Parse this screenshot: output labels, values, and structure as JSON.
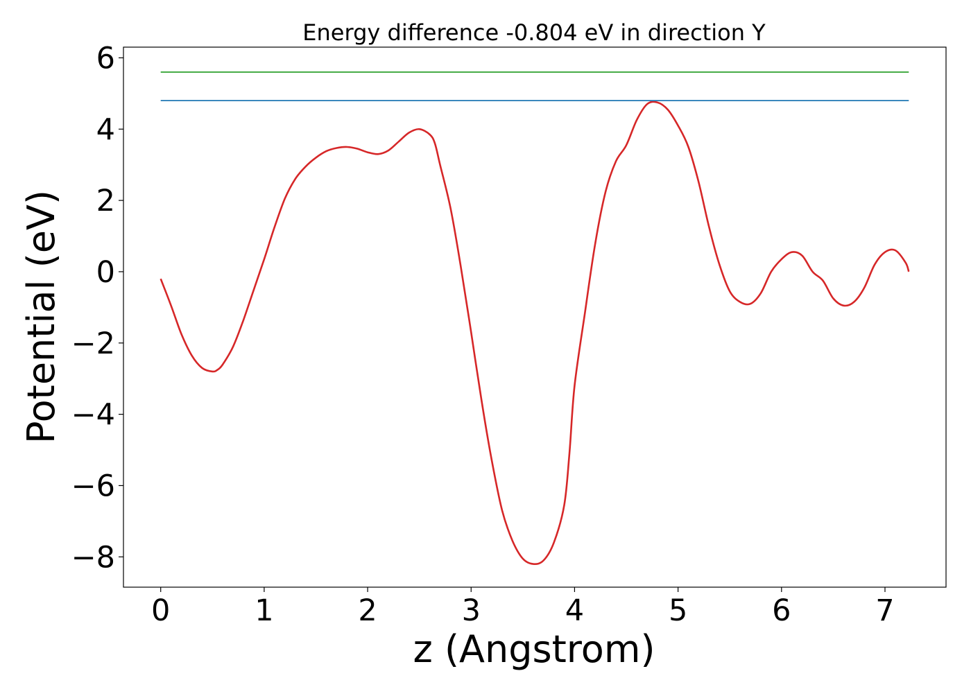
{
  "chart_data": {
    "type": "line",
    "title": "Energy difference -0.804 eV in direction Y",
    "xlabel": "z (Angstrom)",
    "ylabel": "Potential (eV)",
    "xlim": [
      -0.36,
      7.59
    ],
    "ylim": [
      -8.85,
      6.3
    ],
    "xticks": [
      0,
      1,
      2,
      3,
      4,
      5,
      6,
      7
    ],
    "yticks": [
      6,
      4,
      2,
      0,
      -2,
      -4,
      -6,
      -8
    ],
    "grid": false,
    "legend": "none",
    "series": [
      {
        "color": "#d62728",
        "x": [
          0.0,
          0.1,
          0.2,
          0.3,
          0.4,
          0.5,
          0.55,
          0.6,
          0.7,
          0.8,
          0.9,
          1.0,
          1.1,
          1.2,
          1.3,
          1.4,
          1.5,
          1.6,
          1.7,
          1.8,
          1.9,
          2.0,
          2.1,
          2.2,
          2.3,
          2.4,
          2.5,
          2.6,
          2.65,
          2.7,
          2.8,
          2.9,
          3.0,
          3.1,
          3.2,
          3.3,
          3.4,
          3.5,
          3.6,
          3.7,
          3.8,
          3.9,
          3.95,
          4.0,
          4.1,
          4.2,
          4.3,
          4.4,
          4.5,
          4.6,
          4.7,
          4.8,
          4.9,
          5.0,
          5.1,
          5.2,
          5.3,
          5.4,
          5.5,
          5.6,
          5.7,
          5.8,
          5.9,
          6.0,
          6.1,
          6.2,
          6.3,
          6.4,
          6.5,
          6.6,
          6.7,
          6.8,
          6.9,
          7.0,
          7.1,
          7.2,
          7.23
        ],
        "y": [
          -0.2,
          -0.95,
          -1.75,
          -2.35,
          -2.7,
          -2.8,
          -2.75,
          -2.6,
          -2.1,
          -1.35,
          -0.5,
          0.35,
          1.25,
          2.05,
          2.6,
          2.95,
          3.2,
          3.38,
          3.47,
          3.5,
          3.45,
          3.35,
          3.3,
          3.4,
          3.65,
          3.9,
          4.0,
          3.85,
          3.6,
          3.0,
          1.8,
          0.15,
          -1.7,
          -3.6,
          -5.3,
          -6.7,
          -7.55,
          -8.05,
          -8.2,
          -8.1,
          -7.6,
          -6.55,
          -5.1,
          -3.2,
          -1.15,
          0.8,
          2.25,
          3.1,
          3.55,
          4.25,
          4.7,
          4.75,
          4.55,
          4.1,
          3.5,
          2.5,
          1.25,
          0.2,
          -0.55,
          -0.85,
          -0.9,
          -0.6,
          0.0,
          0.35,
          0.55,
          0.45,
          0.0,
          -0.25,
          -0.75,
          -0.95,
          -0.85,
          -0.45,
          0.2,
          0.55,
          0.6,
          0.25,
          0.0
        ]
      },
      {
        "color": "#1f77b4",
        "x": [
          0.0,
          7.23
        ],
        "y": [
          4.8,
          4.8
        ]
      },
      {
        "color": "#2ca02c",
        "x": [
          0.0,
          7.23
        ],
        "y": [
          5.6,
          5.6
        ]
      }
    ]
  }
}
